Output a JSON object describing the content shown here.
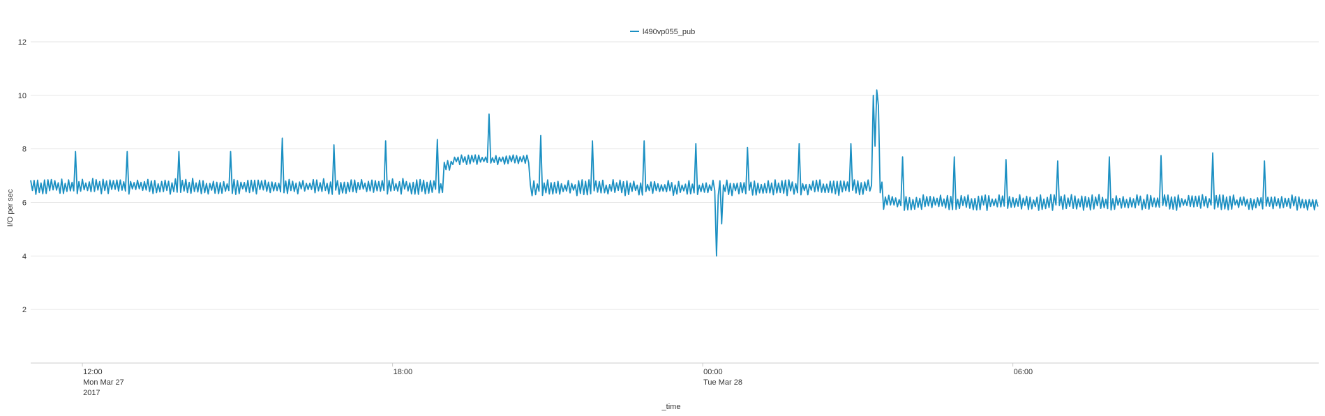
{
  "chart_data": {
    "type": "line",
    "xlabel": "_time",
    "ylabel": "I/O per sec",
    "ylim": [
      0,
      12
    ],
    "y_ticks": [
      "2",
      "4",
      "6",
      "8",
      "10",
      "12"
    ],
    "x_ticks": [
      {
        "time": "12:00",
        "date": "Mon Mar 27",
        "year": "2017"
      },
      {
        "time": "18:00",
        "date": "",
        "year": ""
      },
      {
        "time": "00:00",
        "date": "Tue Mar 28",
        "year": ""
      },
      {
        "time": "06:00",
        "date": "",
        "year": ""
      }
    ],
    "x_range": [
      "2017-03-27 11:00",
      "2017-03-28 11:55"
    ],
    "grid": "horizontal",
    "legend_position": "top",
    "series": [
      {
        "name": "l490vp055_pub",
        "color": "#1a8fc2",
        "segments": [
          {
            "start": "2017-03-27 11:00",
            "end": "2017-03-27 19:00",
            "base": 6.6,
            "noise": 0.3
          },
          {
            "start": "2017-03-27 19:00",
            "end": "2017-03-27 19:10",
            "base": 7.4,
            "noise": 0.2
          },
          {
            "start": "2017-03-27 19:10",
            "end": "2017-03-27 20:40",
            "base": 7.6,
            "noise": 0.2
          },
          {
            "start": "2017-03-27 20:40",
            "end": "2017-03-28 03:30",
            "base": 6.55,
            "noise": 0.3
          },
          {
            "start": "2017-03-28 03:30",
            "end": "2017-03-28 11:55",
            "base": 6.0,
            "noise": 0.3
          }
        ],
        "spikes": [
          {
            "time": "2017-03-27 11:53",
            "value": 7.9
          },
          {
            "time": "2017-03-27 12:53",
            "value": 7.9
          },
          {
            "time": "2017-03-27 13:53",
            "value": 7.9
          },
          {
            "time": "2017-03-27 14:53",
            "value": 7.9
          },
          {
            "time": "2017-03-27 15:53",
            "value": 8.4
          },
          {
            "time": "2017-03-27 16:53",
            "value": 8.15
          },
          {
            "time": "2017-03-27 17:53",
            "value": 8.3
          },
          {
            "time": "2017-03-27 18:53",
            "value": 8.35
          },
          {
            "time": "2017-03-27 19:53",
            "value": 9.3
          },
          {
            "time": "2017-03-27 20:53",
            "value": 8.5
          },
          {
            "time": "2017-03-27 21:53",
            "value": 8.3
          },
          {
            "time": "2017-03-27 22:53",
            "value": 8.3
          },
          {
            "time": "2017-03-27 23:53",
            "value": 8.2
          },
          {
            "time": "2017-03-28 00:53",
            "value": 8.05
          },
          {
            "time": "2017-03-28 01:53",
            "value": 8.2
          },
          {
            "time": "2017-03-28 02:53",
            "value": 8.2
          },
          {
            "time": "2017-03-28 03:23",
            "value": 10.2
          },
          {
            "time": "2017-03-28 03:53",
            "value": 7.7
          },
          {
            "time": "2017-03-28 04:53",
            "value": 7.7
          },
          {
            "time": "2017-03-28 05:53",
            "value": 7.6
          },
          {
            "time": "2017-03-28 06:53",
            "value": 7.55
          },
          {
            "time": "2017-03-28 07:53",
            "value": 7.7
          },
          {
            "time": "2017-03-28 08:53",
            "value": 7.75
          },
          {
            "time": "2017-03-28 09:53",
            "value": 7.85
          },
          {
            "time": "2017-03-28 10:53",
            "value": 7.55
          }
        ],
        "dips": [
          {
            "time": "2017-03-28 00:16",
            "value": 4.0
          },
          {
            "time": "2017-03-28 00:22",
            "value": 5.2
          }
        ]
      }
    ]
  }
}
